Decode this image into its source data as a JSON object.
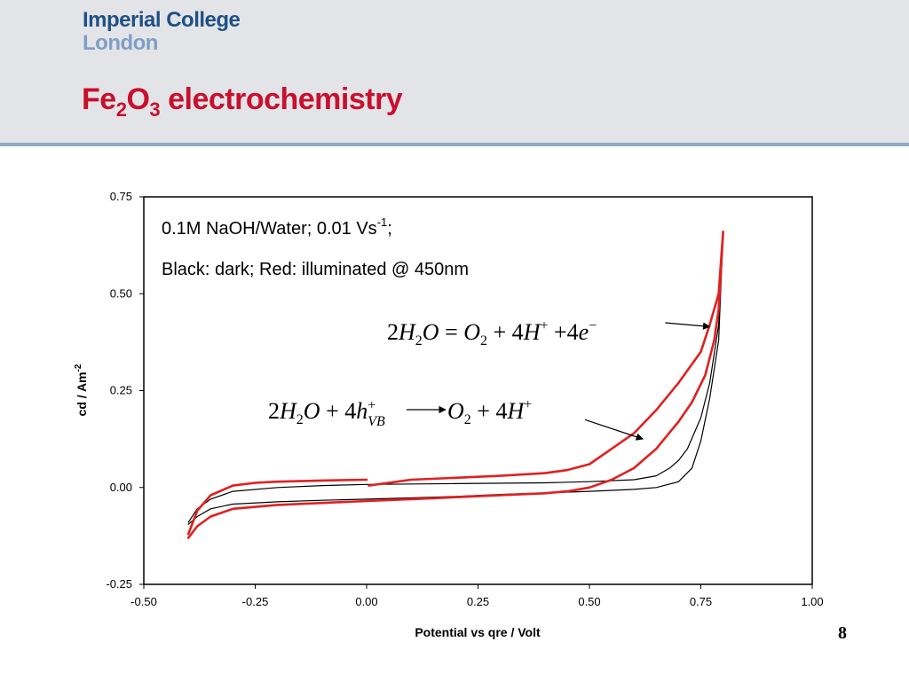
{
  "header": {
    "logo_line1": "Imperial College",
    "logo_line2": "London",
    "title_parts": [
      "Fe",
      "2",
      "O",
      "3",
      " electrochemistry"
    ]
  },
  "page_number": "8",
  "colors": {
    "header_bg": "#e3e4e7",
    "header_rule": "#8eaac6",
    "title": "#c8102e",
    "logo_dark": "#1f5086",
    "logo_light": "#7f9ec4",
    "dark_series": "#000000",
    "illuminated_series": "#e02020"
  },
  "chart_data": {
    "type": "line",
    "title": "",
    "xlabel": "Potential vs qre / Volt",
    "ylabel_main": "cd / Am",
    "ylabel_sup": "-2",
    "xlim": [
      -0.5,
      1.0
    ],
    "ylim": [
      -0.25,
      0.75
    ],
    "xticks": [
      -0.5,
      -0.25,
      0.0,
      0.25,
      0.5,
      0.75,
      1.0
    ],
    "xtick_labels": [
      "-0.50",
      "-0.25",
      "0.00",
      "0.25",
      "0.50",
      "0.75",
      "1.00"
    ],
    "yticks": [
      -0.25,
      0.0,
      0.25,
      0.5,
      0.75
    ],
    "ytick_labels": [
      "-0.25",
      "0.00",
      "0.25",
      "0.50",
      "0.75"
    ],
    "grid": false,
    "annotations": {
      "conditions_main": "0.1M NaOH/Water; 0.01 Vs",
      "conditions_sup": "-1",
      "conditions_end": ";",
      "legend_text": "Black: dark; Red: illuminated @ 450nm",
      "eq1": {
        "p1": "2",
        "p2": "H",
        "p3": "2",
        "p4": "O",
        "p5": " = ",
        "p6": "O",
        "p7": "2",
        "p8": " + 4",
        "p9": "H",
        "p10": "+",
        "p11": " +4",
        "p12": "e",
        "p13": "−"
      },
      "eq2": {
        "p1": "2",
        "p2": "H",
        "p3": "2",
        "p4": "O",
        "p5": " + 4",
        "p6": "h",
        "p7": "+",
        "p8": "VB",
        "p9": "O",
        "p10": "2",
        "p11": " + 4",
        "p12": "H",
        "p13": "+"
      }
    },
    "series": [
      {
        "color": "#000000",
        "width": 1.2,
        "points": [
          [
            -0.4,
            -0.095
          ],
          [
            -0.38,
            -0.075
          ],
          [
            -0.35,
            -0.055
          ],
          [
            -0.3,
            -0.043
          ],
          [
            -0.2,
            -0.037
          ],
          [
            -0.1,
            -0.033
          ],
          [
            0.0,
            -0.03
          ],
          [
            0.1,
            -0.027
          ],
          [
            0.2,
            -0.023
          ],
          [
            0.3,
            -0.018
          ],
          [
            0.4,
            -0.014
          ],
          [
            0.5,
            -0.01
          ],
          [
            0.6,
            -0.005
          ],
          [
            0.65,
            0.0
          ],
          [
            0.7,
            0.015
          ],
          [
            0.73,
            0.05
          ],
          [
            0.75,
            0.12
          ],
          [
            0.77,
            0.23
          ],
          [
            0.79,
            0.38
          ],
          [
            0.8,
            0.66
          ],
          [
            0.79,
            0.42
          ],
          [
            0.77,
            0.27
          ],
          [
            0.75,
            0.18
          ],
          [
            0.72,
            0.1
          ],
          [
            0.7,
            0.07
          ],
          [
            0.68,
            0.05
          ],
          [
            0.65,
            0.03
          ],
          [
            0.6,
            0.02
          ],
          [
            0.5,
            0.015
          ],
          [
            0.4,
            0.012
          ],
          [
            0.2,
            0.01
          ],
          [
            0.0,
            0.008
          ],
          [
            -0.1,
            0.005
          ],
          [
            -0.2,
            0.0
          ],
          [
            -0.3,
            -0.01
          ],
          [
            -0.35,
            -0.03
          ],
          [
            -0.38,
            -0.055
          ],
          [
            -0.4,
            -0.09
          ]
        ]
      },
      {
        "color": "#e02020",
        "width": 2.6,
        "points": [
          [
            -0.4,
            -0.13
          ],
          [
            -0.38,
            -0.1
          ],
          [
            -0.35,
            -0.075
          ],
          [
            -0.3,
            -0.055
          ],
          [
            -0.2,
            -0.045
          ],
          [
            -0.1,
            -0.04
          ],
          [
            0.0,
            -0.035
          ],
          [
            0.1,
            -0.03
          ],
          [
            0.2,
            -0.025
          ],
          [
            0.3,
            -0.02
          ],
          [
            0.4,
            -0.015
          ],
          [
            0.45,
            -0.01
          ],
          [
            0.5,
            0.0
          ],
          [
            0.55,
            0.02
          ],
          [
            0.6,
            0.05
          ],
          [
            0.65,
            0.1
          ],
          [
            0.7,
            0.17
          ],
          [
            0.73,
            0.22
          ],
          [
            0.76,
            0.29
          ],
          [
            0.78,
            0.38
          ],
          [
            0.79,
            0.46
          ],
          [
            0.8,
            0.66
          ],
          [
            0.79,
            0.5
          ],
          [
            0.77,
            0.42
          ],
          [
            0.75,
            0.35
          ],
          [
            0.7,
            0.27
          ],
          [
            0.65,
            0.2
          ],
          [
            0.6,
            0.14
          ],
          [
            0.55,
            0.1
          ],
          [
            0.5,
            0.06
          ],
          [
            0.45,
            0.045
          ],
          [
            0.4,
            0.037
          ],
          [
            0.3,
            0.03
          ],
          [
            0.2,
            0.025
          ],
          [
            0.1,
            0.02
          ],
          [
            0.005,
            0.005
          ]
        ]
      },
      {
        "color": "#e02020",
        "width": 2.6,
        "points": [
          [
            0.0,
            0.02
          ],
          [
            -0.1,
            0.018
          ],
          [
            -0.2,
            0.015
          ],
          [
            -0.25,
            0.012
          ],
          [
            -0.3,
            0.005
          ],
          [
            -0.35,
            -0.02
          ],
          [
            -0.38,
            -0.06
          ],
          [
            -0.4,
            -0.12
          ]
        ]
      }
    ],
    "arrows": [
      {
        "from": [
          0.67,
          0.425
        ],
        "to": [
          0.77,
          0.415
        ]
      },
      {
        "from": [
          0.49,
          0.175
        ],
        "to": [
          0.62,
          0.125
        ]
      }
    ]
  }
}
